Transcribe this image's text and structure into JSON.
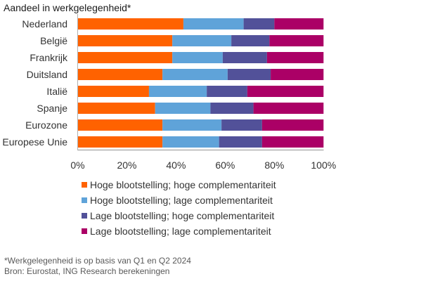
{
  "title": "Aandeel in werkgelegenheid*",
  "chart_data": {
    "type": "bar",
    "orientation": "horizontal",
    "stacked": true,
    "title": "Aandeel in werkgelegenheid*",
    "xlabel": "",
    "ylabel": "",
    "xlim": [
      0,
      100
    ],
    "x_ticks": [
      "0%",
      "20%",
      "40%",
      "60%",
      "80%",
      "100%"
    ],
    "categories": [
      "Nederland",
      "België",
      "Frankrijk",
      "Duitsland",
      "Italië",
      "Spanje",
      "Eurozone",
      "Europese Unie"
    ],
    "series": [
      {
        "name": "Hoge blootstelling; hoge complementariteit",
        "color": "#ff6200",
        "values": [
          43,
          38.5,
          38.5,
          34.5,
          29,
          31.5,
          34.5,
          34.5
        ]
      },
      {
        "name": "Hoge blootstelling; lage complementariteit",
        "color": "#5fa3d9",
        "values": [
          24.5,
          24,
          20.5,
          26.5,
          23.5,
          22.5,
          24,
          23
        ]
      },
      {
        "name": "Lage blootstelling; hoge complementariteit",
        "color": "#525199",
        "values": [
          12.5,
          15.5,
          18,
          17.5,
          16.5,
          17.5,
          16.5,
          17.5
        ]
      },
      {
        "name": "Lage blootstelling; lage complementariteit",
        "color": "#ab0066",
        "values": [
          20,
          22,
          23,
          21.5,
          31,
          28.5,
          25,
          25
        ]
      }
    ],
    "legend_position": "bottom",
    "grid": false
  },
  "notes": {
    "footnote": "*Werkgelegenheid is op basis van Q1 en Q2 2024",
    "source": "Bron: Eurostat, ING Research berekeningen"
  }
}
